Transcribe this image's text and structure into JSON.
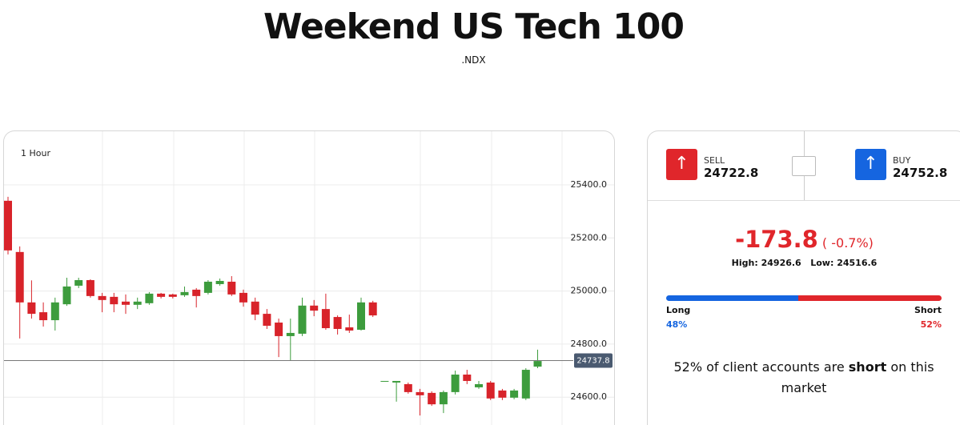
{
  "header": {
    "title": "Weekend US Tech 100",
    "subtitle": ".NDX"
  },
  "chart_data": {
    "type": "candlestick",
    "timeframe": "1 Hour",
    "open": [
      25340,
      25147,
      24957,
      24920,
      24890,
      24950,
      25020,
      25041,
      24981,
      24978,
      24960,
      24948,
      24954,
      24990,
      24987,
      24984,
      25005,
      24993,
      25026,
      25035,
      24993,
      24960,
      24914,
      24881,
      24830,
      24839,
      24945,
      24932,
      24902,
      24863,
      24854,
      24957,
      24661,
      24655,
      24649,
      24619,
      24616,
      24573,
      24619,
      24685,
      24637,
      24655,
      24625,
      24598,
      24595,
      24715
    ],
    "high": [
      25355,
      25168,
      25040,
      24957,
      24975,
      25050,
      25050,
      25044,
      24993,
      24993,
      24987,
      24975,
      24996,
      24993,
      24990,
      25017,
      25011,
      25041,
      25047,
      25056,
      25005,
      24975,
      24932,
      24896,
      24896,
      24975,
      24966,
      24990,
      24908,
      24911,
      24975,
      24963,
      24661,
      24661,
      24655,
      24631,
      24622,
      24625,
      24700,
      24703,
      24661,
      24661,
      24631,
      24631,
      24709,
      24779
    ],
    "low": [
      25138,
      24821,
      24896,
      24866,
      24851,
      24944,
      25011,
      24975,
      24920,
      24920,
      24914,
      24932,
      24948,
      24972,
      24972,
      24978,
      24938,
      24987,
      25020,
      24981,
      24941,
      24890,
      24857,
      24751,
      24739,
      24830,
      24905,
      24854,
      24836,
      24842,
      24851,
      24902,
      24661,
      24583,
      24613,
      24531,
      24567,
      24540,
      24610,
      24649,
      24631,
      24589,
      24589,
      24592,
      24589,
      24709
    ],
    "close": [
      25153,
      24957,
      24914,
      24890,
      24957,
      25017,
      25041,
      24981,
      24966,
      24950,
      24948,
      24960,
      24990,
      24978,
      24978,
      24996,
      24981,
      25035,
      25038,
      24987,
      24957,
      24911,
      24869,
      24830,
      24842,
      24945,
      24926,
      24860,
      24857,
      24851,
      24957,
      24908,
      24661,
      24661,
      24619,
      24607,
      24573,
      24619,
      24685,
      24661,
      24649,
      24595,
      24598,
      24625,
      24703,
      24736
    ],
    "up_color": "#3d9c3d",
    "down_color": "#d8232a",
    "ylim": [
      24495,
      25605
    ],
    "yticks": [
      {
        "value": 24600,
        "label": "24600.0"
      },
      {
        "value": 24800,
        "label": "24800.0"
      },
      {
        "value": 25000,
        "label": "25000.0"
      },
      {
        "value": 25200,
        "label": "25200.0"
      },
      {
        "value": 25400,
        "label": "25400.0"
      }
    ],
    "grid": true,
    "current_price": 24737.8
  },
  "quote": {
    "sell": {
      "label": "SELL",
      "price": 24722.8
    },
    "buy": {
      "label": "BUY",
      "price": 24752.8
    }
  },
  "change": {
    "value": -173.8,
    "percent": "( -0.7%)",
    "high_label": "High:",
    "high": 24926.6,
    "low_label": "Low:",
    "low": 24516.6
  },
  "sentiment": {
    "long_label": "Long",
    "short_label": "Short",
    "long": 48,
    "long_value_label": "48%",
    "short": 52,
    "short_value_label": "52%",
    "sentence": [
      "52% of client accounts are ",
      "short",
      " on this market"
    ]
  }
}
